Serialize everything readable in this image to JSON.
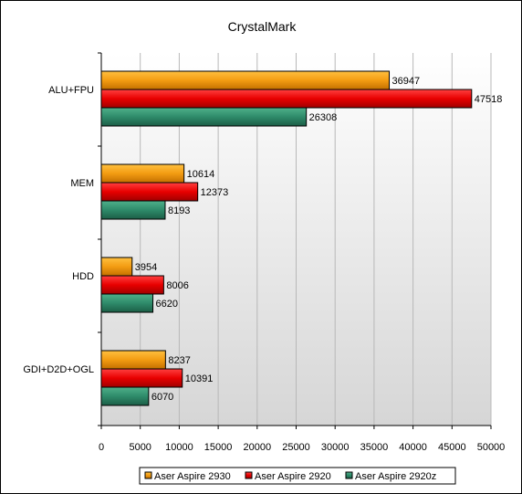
{
  "chart_data": {
    "type": "bar",
    "orientation": "horizontal",
    "title": "CrystalMark",
    "categories": [
      "ALU+FPU",
      "MEM",
      "HDD",
      "GDI+D2D+OGL"
    ],
    "series": [
      {
        "name": "Aser Aspire 2930",
        "values": [
          36947,
          10614,
          3954,
          8237
        ],
        "color": "#ff9900"
      },
      {
        "name": "Aser Aspire 2920",
        "values": [
          47518,
          12373,
          8006,
          10391
        ],
        "color": "#ee0000"
      },
      {
        "name": "Aser Aspire 2920z",
        "values": [
          26308,
          8193,
          6620,
          6070
        ],
        "color": "#2e8b6a"
      }
    ],
    "xlim": [
      0,
      50000
    ],
    "xticks": [
      0,
      5000,
      10000,
      15000,
      20000,
      25000,
      30000,
      35000,
      40000,
      45000,
      50000
    ],
    "grid": true,
    "legend": "bottom",
    "data_labels": true
  }
}
